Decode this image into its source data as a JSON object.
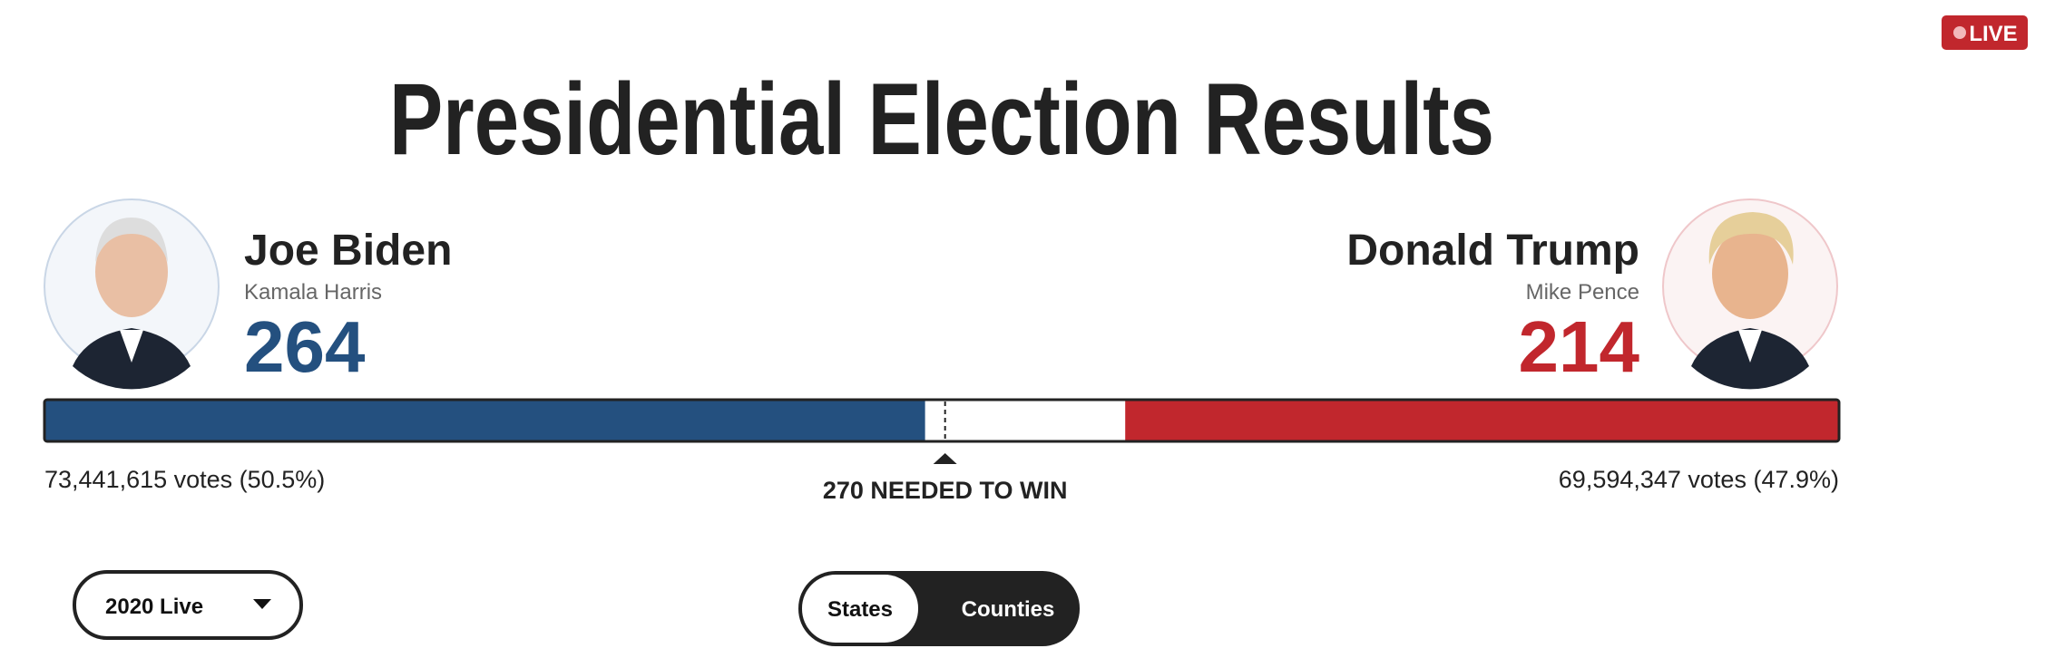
{
  "badge": "LIVE",
  "title": "Presidential Election Results",
  "candidates": [
    {
      "name": "Joe Biden",
      "running_mate": "Kamala Harris",
      "electoral_votes": 264,
      "popular_votes": "73,441,615 votes (50.5%)",
      "color": "#24507f"
    },
    {
      "name": "Donald Trump",
      "running_mate": "Mike Pence",
      "electoral_votes": 214,
      "popular_votes": "69,594,347 votes (47.9%)",
      "color": "#c1272d"
    }
  ],
  "threshold": {
    "value": 270,
    "label": "270 NEEDED TO WIN"
  },
  "controls": {
    "year_dropdown": "2020 Live",
    "view_toggle": [
      "States",
      "Counties"
    ]
  }
}
